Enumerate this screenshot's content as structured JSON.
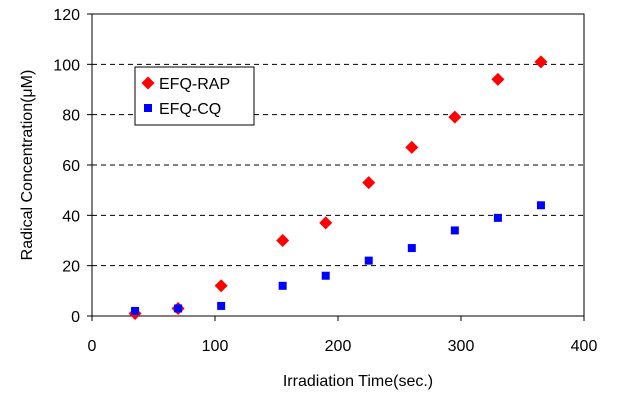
{
  "chart_data": {
    "type": "scatter",
    "title": "",
    "xlabel": "Irradiation Time(sec.)",
    "ylabel": "Radical Concentration(μM)",
    "xlim": [
      0,
      400
    ],
    "ylim": [
      0,
      120
    ],
    "xticks": [
      0,
      100,
      200,
      300,
      400
    ],
    "yticks": [
      0,
      20,
      40,
      60,
      80,
      100,
      120
    ],
    "grid": "horizontal dashed",
    "legend_position": "upper-left",
    "series": [
      {
        "name": "EFQ-RAP",
        "marker": "diamond",
        "color": "#ff0000",
        "x": [
          35,
          70,
          105,
          155,
          190,
          225,
          260,
          295,
          330,
          365
        ],
        "y": [
          1,
          3,
          12,
          30,
          37,
          53,
          67,
          79,
          94,
          101
        ]
      },
      {
        "name": "EFQ-CQ",
        "marker": "square",
        "color": "#0000ff",
        "x": [
          35,
          70,
          105,
          155,
          190,
          225,
          260,
          295,
          330,
          365
        ],
        "y": [
          2,
          3,
          4,
          12,
          16,
          22,
          27,
          34,
          39,
          44
        ]
      }
    ]
  }
}
